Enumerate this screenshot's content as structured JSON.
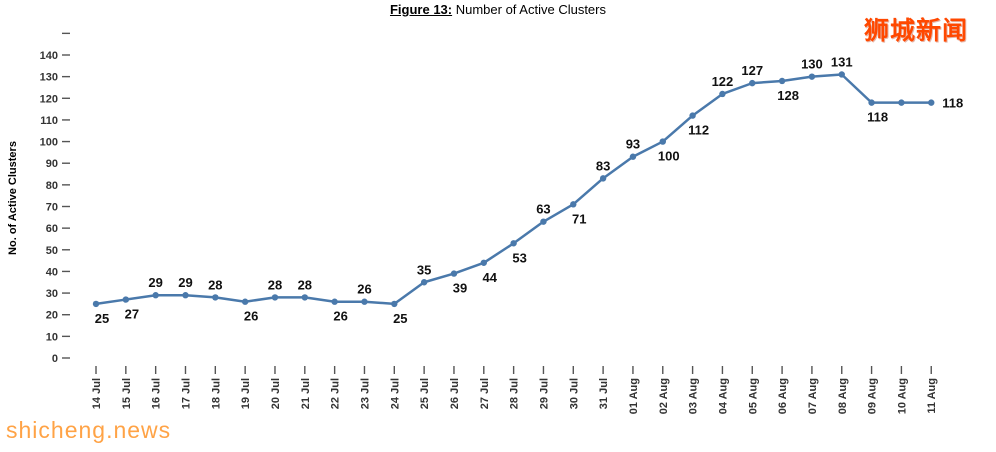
{
  "title": {
    "figure": "Figure 13:",
    "rest": " Number of Active Clusters"
  },
  "watermarks": {
    "top_right": "狮城新闻",
    "bottom_left": "shicheng.news"
  },
  "chart_data": {
    "type": "line",
    "title": "Figure 13: Number of Active Clusters",
    "xlabel": "",
    "ylabel": "No. of Active Clusters",
    "ylim": [
      0,
      150
    ],
    "grid": false,
    "legend": "none",
    "series_color": "#4a79ab",
    "y_ticks": [
      0,
      10,
      20,
      30,
      40,
      50,
      60,
      70,
      80,
      90,
      100,
      110,
      120,
      130,
      140
    ],
    "categories": [
      "14 Jul",
      "15 Jul",
      "16 Jul",
      "17 Jul",
      "18 Jul",
      "19 Jul",
      "20 Jul",
      "21 Jul",
      "22 Jul",
      "23 Jul",
      "24 Jul",
      "25 Jul",
      "26 Jul",
      "27 Jul",
      "28 Jul",
      "29 Jul",
      "30 Jul",
      "31 Jul",
      "01 Aug",
      "02 Aug",
      "03 Aug",
      "04 Aug",
      "05 Aug",
      "06 Aug",
      "07 Aug",
      "08 Aug",
      "09 Aug",
      "10 Aug",
      "11 Aug"
    ],
    "values": [
      25,
      27,
      29,
      29,
      28,
      26,
      28,
      28,
      26,
      26,
      25,
      35,
      39,
      44,
      53,
      63,
      71,
      83,
      93,
      100,
      112,
      122,
      127,
      128,
      130,
      131,
      118,
      118,
      118
    ],
    "data_labels": [
      "25",
      "27",
      "29",
      "29",
      "28",
      "26",
      "28",
      "28",
      "26",
      "26",
      "25",
      "35",
      "39",
      "44",
      "53",
      "63",
      "71",
      "83",
      "93",
      "100",
      "112",
      "122",
      "127",
      "128",
      "130",
      "131",
      "118",
      "",
      "118"
    ],
    "label_positions": [
      "below",
      "below",
      "above",
      "above",
      "above",
      "below",
      "above",
      "above",
      "below",
      "above",
      "below",
      "above",
      "below",
      "below",
      "below",
      "above",
      "below",
      "above",
      "above",
      "below",
      "below",
      "above",
      "above",
      "below",
      "above",
      "above",
      "below",
      "",
      "right"
    ]
  }
}
